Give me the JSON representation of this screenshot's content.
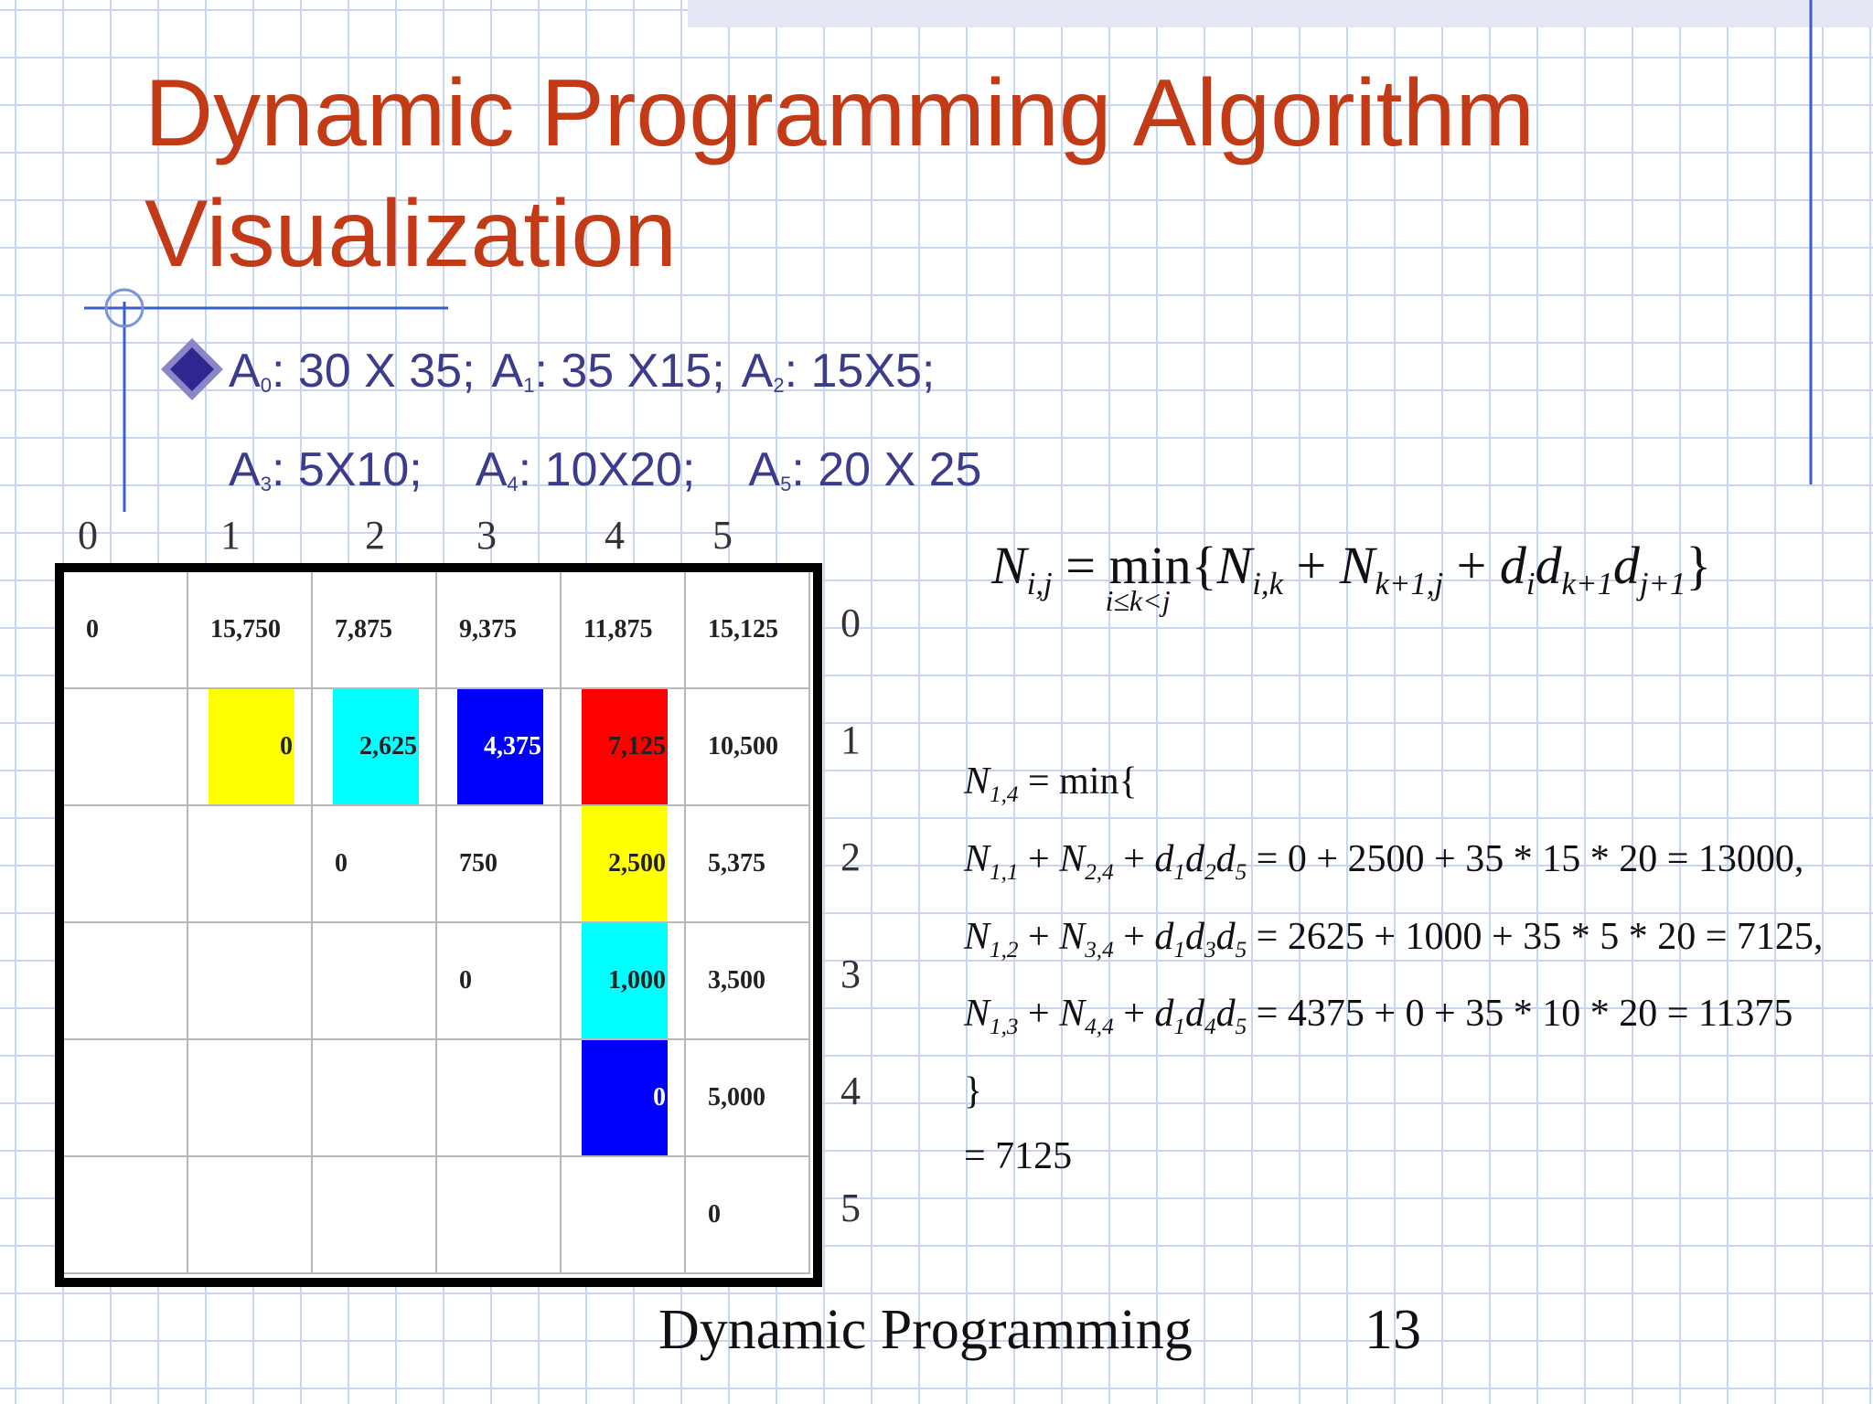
{
  "title": [
    "Dynamic Programming Algorithm",
    "Visualization"
  ],
  "bullet_lines": [
    [
      {
        "base": "A",
        "sub": "0",
        "text": ": 30 X 35;"
      },
      {
        "base": "A",
        "sub": "1",
        "text": ": 35 X15;"
      },
      {
        "base": "A",
        "sub": "2",
        "text": ": 15X5;"
      }
    ],
    [
      {
        "base": "A",
        "sub": "3",
        "text": ": 5X10;"
      },
      {
        "base": "A",
        "sub": "4",
        "text": ": 10X20;"
      },
      {
        "base": "A",
        "sub": "5",
        "text": ": 20 X 25"
      }
    ]
  ],
  "table": {
    "column_headers": [
      "0",
      "1",
      "2",
      "3",
      "4",
      "5"
    ],
    "row_headers": [
      "0",
      "1",
      "2",
      "3",
      "4",
      "5"
    ],
    "rows": [
      [
        "0",
        "15,750",
        "7,875",
        "9,375",
        "11,875",
        "15,125"
      ],
      [
        null,
        "0",
        "2,625",
        "4,375",
        "7,125",
        "10,500"
      ],
      [
        null,
        null,
        "0",
        "750",
        "2,500",
        "5,375"
      ],
      [
        null,
        null,
        null,
        "0",
        "1,000",
        "3,500"
      ],
      [
        null,
        null,
        null,
        null,
        "0",
        "5,000"
      ],
      [
        null,
        null,
        null,
        null,
        null,
        "0"
      ]
    ],
    "cell_colors": [
      [
        null,
        null,
        null,
        null,
        null,
        null
      ],
      [
        null,
        "#ffff00",
        "#00ffff",
        "#0000ff",
        "#ff0000",
        null
      ],
      [
        null,
        null,
        null,
        null,
        "#ffff00",
        null
      ],
      [
        null,
        null,
        null,
        null,
        "#00ffff",
        null
      ],
      [
        null,
        null,
        null,
        null,
        "#0000ff",
        null
      ],
      [
        null,
        null,
        null,
        null,
        null,
        null
      ]
    ]
  },
  "formula": [
    {
      "t": "N",
      "sub": "i,j"
    },
    {
      "t": " = "
    },
    {
      "t": "min",
      "under": "i≤k<j"
    },
    {
      "t": "{"
    },
    {
      "t": "N",
      "sub": "i,k"
    },
    {
      "t": " + "
    },
    {
      "t": "N",
      "sub": "k+1,j"
    },
    {
      "t": " + "
    },
    {
      "t": "d",
      "sub": "i"
    },
    {
      "t": "d",
      "sub": "k+1"
    },
    {
      "t": "d",
      "sub": "j+1"
    },
    {
      "t": "}"
    }
  ],
  "example_lines": [
    [
      {
        "t": "N",
        "sub": "1,4"
      },
      {
        "t": " = min{"
      }
    ],
    [
      {
        "t": "N",
        "sub": "1,1"
      },
      {
        "t": " + "
      },
      {
        "t": "N",
        "sub": "2,4"
      },
      {
        "t": " + "
      },
      {
        "t": "d",
        "sub": "1"
      },
      {
        "t": "d",
        "sub": "2"
      },
      {
        "t": "d",
        "sub": "5"
      },
      {
        "t": " = 0 + 2500 + 35 * 15 * 20 = 13000,"
      }
    ],
    [
      {
        "t": "N",
        "sub": "1,2"
      },
      {
        "t": " + "
      },
      {
        "t": "N",
        "sub": "3,4"
      },
      {
        "t": " + "
      },
      {
        "t": "d",
        "sub": "1"
      },
      {
        "t": "d",
        "sub": "3"
      },
      {
        "t": "d",
        "sub": "5"
      },
      {
        "t": " = 2625 + 1000 + 35 * 5 * 20 = 7125,"
      }
    ],
    [
      {
        "t": "N",
        "sub": "1,3"
      },
      {
        "t": " + "
      },
      {
        "t": "N",
        "sub": "4,4"
      },
      {
        "t": " + "
      },
      {
        "t": "d",
        "sub": "1"
      },
      {
        "t": "d",
        "sub": "4"
      },
      {
        "t": "d",
        "sub": "5"
      },
      {
        "t": " = 4375 + 0 + 35 * 10 * 20 = 11375"
      }
    ],
    [
      {
        "t": "}"
      }
    ],
    [
      {
        "t": "= 7125"
      }
    ]
  ],
  "footer": {
    "text": "Dynamic Programming",
    "page": "13"
  }
}
